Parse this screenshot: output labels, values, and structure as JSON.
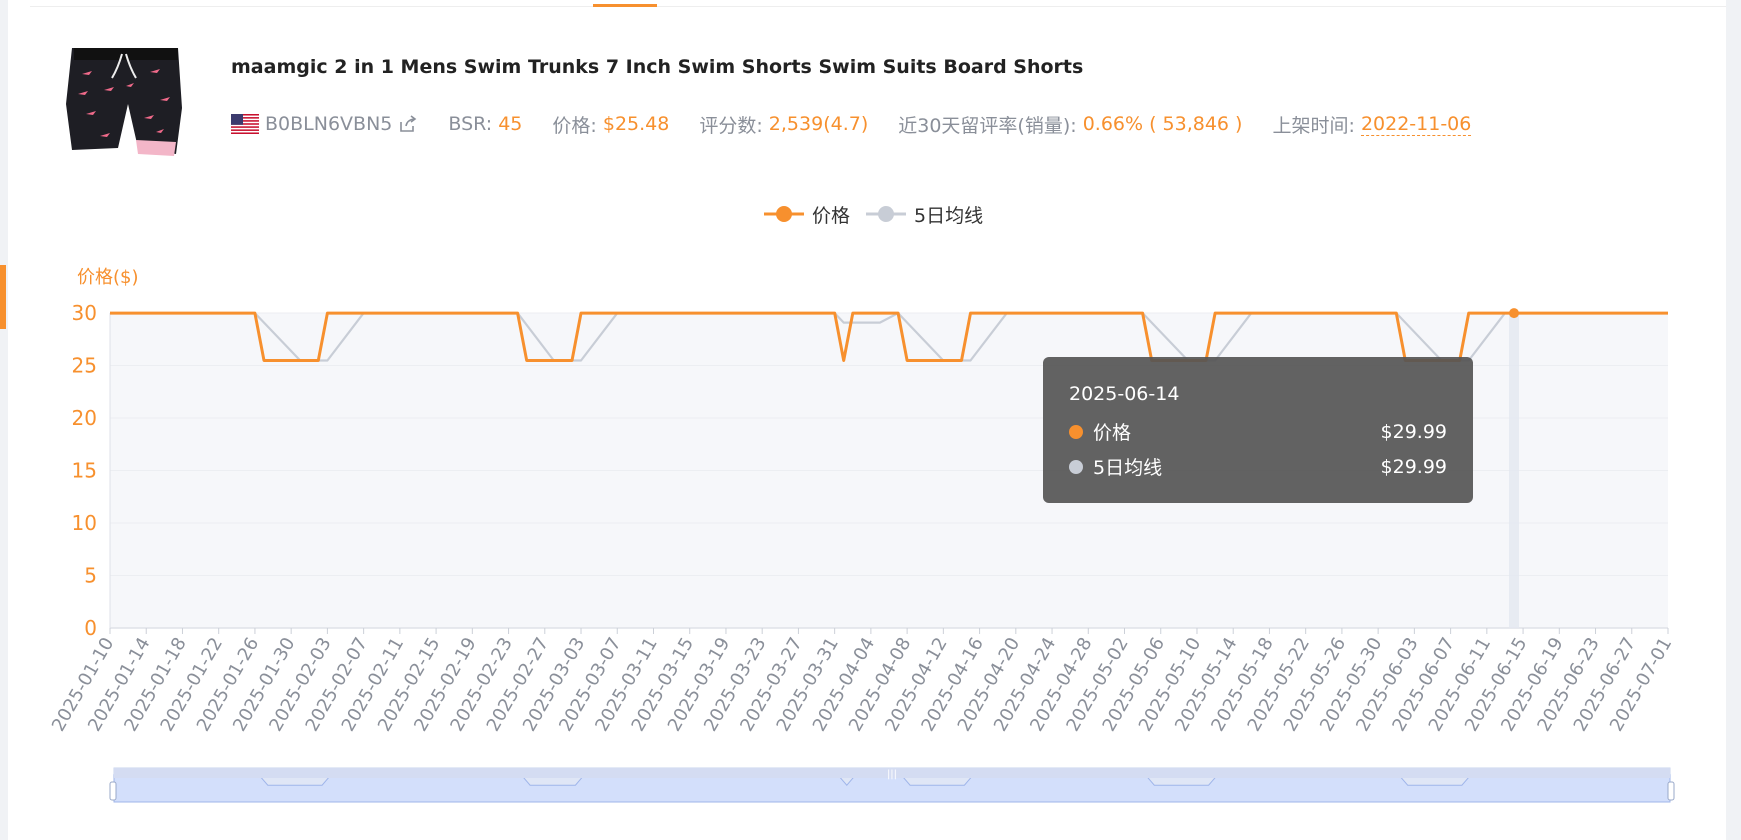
{
  "product": {
    "title": "maamgic 2 in 1 Mens Swim Trunks 7 Inch Swim Shorts Swim Suits Board Shorts",
    "asin": "B0BLN6VBN5",
    "bsr_label": "BSR:",
    "bsr_value": "45",
    "price_label": "价格:",
    "price_value": "$25.48",
    "reviews_label": "评分数:",
    "reviews_value": "2,539(4.7)",
    "rate_label": "近30天留评率(销量):",
    "rate_value": "0.66% ( 53,846 )",
    "listed_label": "上架时间:",
    "listed_value": "2022-11-06"
  },
  "legend": {
    "price": "价格",
    "ma5": "5日均线"
  },
  "tooltip": {
    "date": "2025-06-14",
    "price_label": "价格",
    "price_value": "$29.99",
    "ma_label": "5日均线",
    "ma_value": "$29.99"
  },
  "colors": {
    "accent": "#f7902e",
    "ma": "#c8cdd6",
    "tooltip_bg": "#555555"
  },
  "chart_data": {
    "type": "line",
    "ylabel": "价格($)",
    "ylim": [
      0,
      30
    ],
    "yticks": [
      0,
      5,
      10,
      15,
      20,
      25,
      30
    ],
    "xlim": [
      "2025-01-10",
      "2025-07-01"
    ],
    "xticks": [
      "2025-01-10",
      "2025-01-14",
      "2025-01-18",
      "2025-01-22",
      "2025-01-26",
      "2025-01-30",
      "2025-02-03",
      "2025-02-07",
      "2025-02-11",
      "2025-02-15",
      "2025-02-19",
      "2025-02-23",
      "2025-02-27",
      "2025-03-03",
      "2025-03-07",
      "2025-03-11",
      "2025-03-15",
      "2025-03-19",
      "2025-03-23",
      "2025-03-27",
      "2025-03-31",
      "2025-04-04",
      "2025-04-08",
      "2025-04-12",
      "2025-04-16",
      "2025-04-20",
      "2025-04-24",
      "2025-04-28",
      "2025-05-02",
      "2025-05-06",
      "2025-05-10",
      "2025-05-14",
      "2025-05-18",
      "2025-05-22",
      "2025-05-26",
      "2025-05-30",
      "2025-06-03",
      "2025-06-07",
      "2025-06-11",
      "2025-06-15",
      "2025-06-19",
      "2025-06-23",
      "2025-06-27",
      "2025-07-01"
    ],
    "series": [
      {
        "name": "价格",
        "x": [
          "2025-01-10",
          "2025-01-26",
          "2025-01-27",
          "2025-02-02",
          "2025-02-03",
          "2025-02-24",
          "2025-02-25",
          "2025-03-02",
          "2025-03-03",
          "2025-03-31",
          "2025-04-01",
          "2025-04-02",
          "2025-04-07",
          "2025-04-08",
          "2025-04-14",
          "2025-04-15",
          "2025-05-04",
          "2025-05-05",
          "2025-05-11",
          "2025-05-12",
          "2025-06-01",
          "2025-06-02",
          "2025-06-08",
          "2025-06-09",
          "2025-07-01"
        ],
        "y": [
          29.99,
          29.99,
          25.48,
          25.48,
          29.99,
          29.99,
          25.48,
          25.48,
          29.99,
          29.99,
          25.48,
          29.99,
          29.99,
          25.48,
          25.48,
          29.99,
          29.99,
          25.48,
          25.48,
          29.99,
          29.99,
          25.48,
          25.48,
          29.99,
          29.99
        ]
      },
      {
        "name": "5日均线",
        "x": [
          "2025-01-10",
          "2025-01-26",
          "2025-01-31",
          "2025-02-03",
          "2025-02-07",
          "2025-02-24",
          "2025-02-28",
          "2025-03-03",
          "2025-03-07",
          "2025-03-31",
          "2025-04-01",
          "2025-04-05",
          "2025-04-07",
          "2025-04-12",
          "2025-04-15",
          "2025-04-19",
          "2025-05-04",
          "2025-05-09",
          "2025-05-12",
          "2025-05-16",
          "2025-06-01",
          "2025-06-06",
          "2025-06-09",
          "2025-06-13",
          "2025-07-01"
        ],
        "y": [
          29.99,
          29.99,
          25.48,
          25.48,
          29.99,
          29.99,
          25.48,
          25.48,
          29.99,
          29.99,
          29.09,
          29.09,
          29.99,
          25.48,
          25.48,
          29.99,
          29.99,
          25.48,
          25.48,
          29.99,
          29.99,
          25.48,
          25.48,
          29.99,
          29.99
        ]
      }
    ],
    "highlight": {
      "x": "2025-06-14",
      "y": 29.99
    },
    "grid": true
  }
}
